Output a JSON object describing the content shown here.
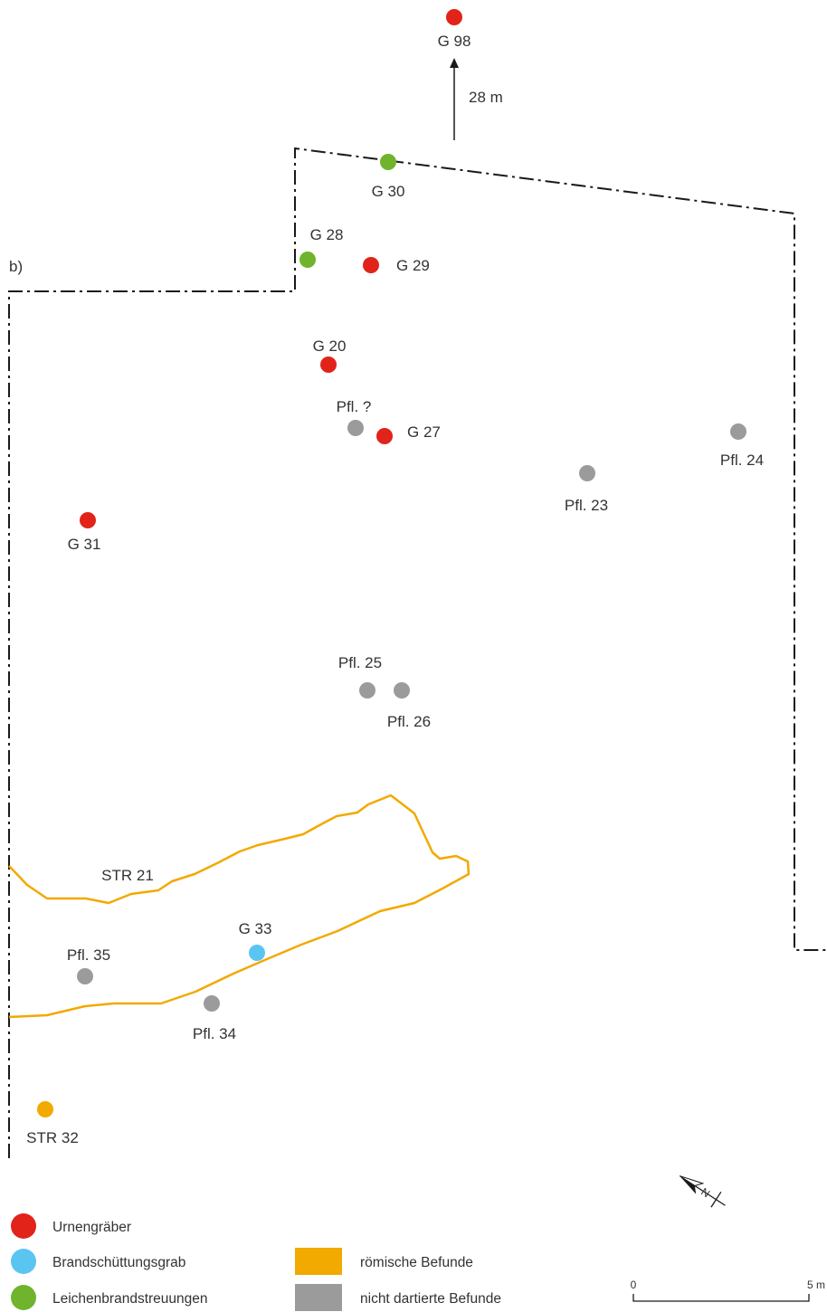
{
  "panel_label": "b)",
  "distance_label": "28 m",
  "colors": {
    "urn": "#e2231a",
    "brandschuettung": "#5bc5f2",
    "leichenbrand": "#6fb42c",
    "roman": "#f2a900",
    "undated": "#9b9b9b",
    "boundary": "#1a1a1a",
    "text": "#333333"
  },
  "features": [
    {
      "id": "g98",
      "label": "G 98",
      "category": "urn"
    },
    {
      "id": "g30",
      "label": "G 30",
      "category": "leichenbrand"
    },
    {
      "id": "g28",
      "label": "G 28",
      "category": "leichenbrand"
    },
    {
      "id": "g29",
      "label": "G 29",
      "category": "urn"
    },
    {
      "id": "g20",
      "label": "G 20",
      "category": "urn"
    },
    {
      "id": "pfl-q",
      "label": "Pfl. ?",
      "category": "undated"
    },
    {
      "id": "g27",
      "label": "G 27",
      "category": "urn"
    },
    {
      "id": "pfl24",
      "label": "Pfl. 24",
      "category": "undated"
    },
    {
      "id": "pfl23",
      "label": "Pfl. 23",
      "category": "undated"
    },
    {
      "id": "g31",
      "label": "G 31",
      "category": "urn"
    },
    {
      "id": "pfl25",
      "label": "Pfl. 25",
      "category": "undated"
    },
    {
      "id": "pfl26",
      "label": "Pfl. 26",
      "category": "undated"
    },
    {
      "id": "g33",
      "label": "G 33",
      "category": "brandschuettung"
    },
    {
      "id": "pfl35",
      "label": "Pfl. 35",
      "category": "undated"
    },
    {
      "id": "pfl34",
      "label": "Pfl. 34",
      "category": "undated"
    },
    {
      "id": "str32",
      "label": "STR 32",
      "category": "roman"
    }
  ],
  "outline_feature": {
    "label": "STR 21",
    "category": "roman"
  },
  "legend": {
    "urn": "Urnengräber",
    "brandschuettung": "Brandschüttungsgrab",
    "leichenbrand": "Leichenbrandstreuungen",
    "roman": "römische Befunde",
    "undated": "nicht dartierte Befunde"
  },
  "scale_bar": {
    "start_label": "0",
    "end_label": "5 m",
    "length_m": 5
  },
  "north_arrow": {
    "letter": "N"
  }
}
